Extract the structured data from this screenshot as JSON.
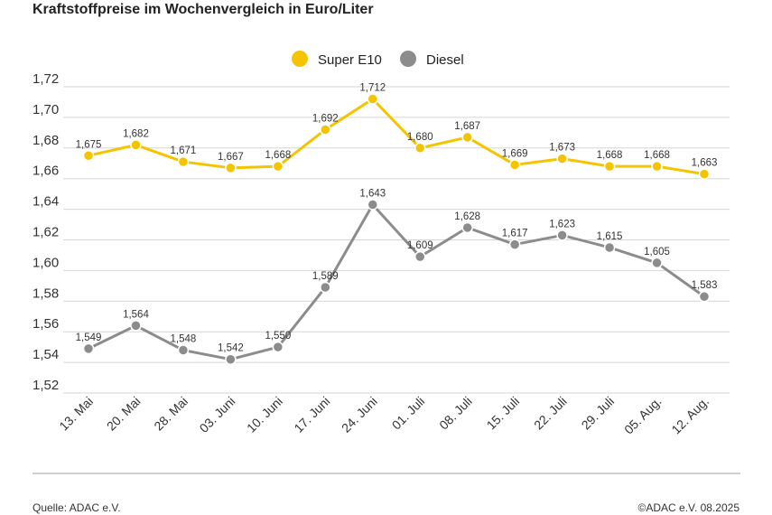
{
  "title": "Kraftstoffpreise im Wochenvergleich in Euro/Liter",
  "source": "Quelle: ADAC e.V.",
  "copyright": "©ADAC e.V. 08.2025",
  "colors": {
    "super": "#f5c400",
    "diesel": "#8c8c8c",
    "grid": "#d6d6d6"
  },
  "chart_data": {
    "type": "line",
    "title": "Kraftstoffpreise im Wochenvergleich in Euro/Liter",
    "xlabel": "",
    "ylabel": "",
    "ylim": [
      1.52,
      1.72
    ],
    "yticks": [
      "1,72",
      "1,70",
      "1,68",
      "1,66",
      "1,64",
      "1,62",
      "1,60",
      "1,58",
      "1,56",
      "1,54",
      "1,52"
    ],
    "grid": true,
    "legend": "top-center",
    "categories": [
      "13. Mai",
      "20. Mai",
      "28. Mai",
      "03. Juni",
      "10. Juni",
      "17. Juni",
      "24. Juni",
      "01. Juli",
      "08. Juli",
      "15. Juli",
      "22. Juli",
      "29. Juli",
      "05. Aug.",
      "12. Aug."
    ],
    "series": [
      {
        "name": "Super E10",
        "values": [
          1.675,
          1.682,
          1.671,
          1.667,
          1.668,
          1.692,
          1.712,
          1.68,
          1.687,
          1.669,
          1.673,
          1.668,
          1.668,
          1.663
        ],
        "labels": [
          "1,675",
          "1,682",
          "1,671",
          "1,667",
          "1,668",
          "1,692",
          "1,712",
          "1,680",
          "1,687",
          "1,669",
          "1,673",
          "1,668",
          "1,668",
          "1,663"
        ]
      },
      {
        "name": "Diesel",
        "values": [
          1.549,
          1.564,
          1.548,
          1.542,
          1.55,
          1.589,
          1.643,
          1.609,
          1.628,
          1.617,
          1.623,
          1.615,
          1.605,
          1.583
        ],
        "labels": [
          "1,549",
          "1,564",
          "1,548",
          "1,542",
          "1,550",
          "1,589",
          "1,643",
          "1,609",
          "1,628",
          "1,617",
          "1,623",
          "1,615",
          "1,605",
          "1,583"
        ]
      }
    ]
  }
}
